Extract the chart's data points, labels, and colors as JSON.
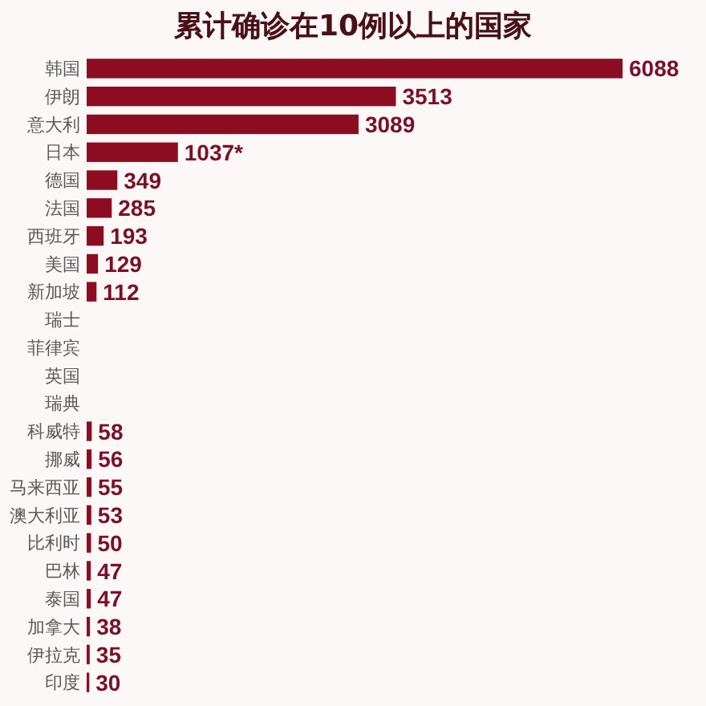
{
  "chart_data": {
    "type": "bar",
    "orientation": "horizontal",
    "title": "累计确诊在10例以上的国家",
    "categories": [
      "韩国",
      "伊朗",
      "意大利",
      "日本",
      "德国",
      "法国",
      "西班牙",
      "美国",
      "新加坡",
      "瑞士",
      "菲律宾",
      "英国",
      "瑞典",
      "科威特",
      "挪威",
      "马来西亚",
      "澳大利亚",
      "比利时",
      "巴林",
      "泰国",
      "加拿大",
      "伊拉克",
      "印度"
    ],
    "values": [
      6088,
      3513,
      3089,
      1037,
      349,
      285,
      193,
      129,
      112,
      null,
      null,
      null,
      null,
      58,
      56,
      55,
      53,
      50,
      47,
      47,
      38,
      35,
      30
    ],
    "value_labels": [
      "6088",
      "3513",
      "3089",
      "1037*",
      "349",
      "285",
      "193",
      "129",
      "112",
      null,
      null,
      null,
      null,
      "58",
      "56",
      "55",
      "53",
      "50",
      "47",
      "47",
      "38",
      "35",
      "30"
    ],
    "color": "#8e0c22"
  }
}
